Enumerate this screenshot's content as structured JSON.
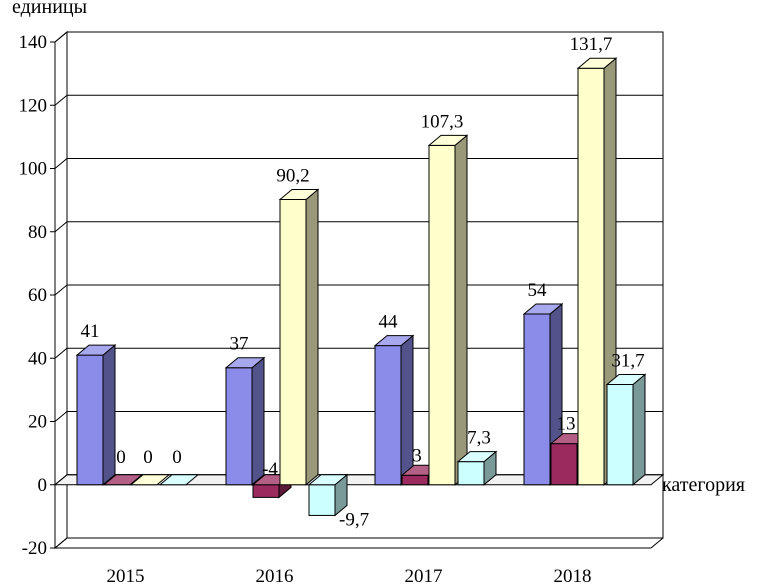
{
  "chart_data": {
    "type": "bar",
    "title": "",
    "ylabel": "единицы",
    "xlabel": "категория",
    "ylim": [
      -20,
      140
    ],
    "yticks": [
      -20,
      0,
      20,
      40,
      60,
      80,
      100,
      120,
      140
    ],
    "categories": [
      "2015",
      "2016",
      "2017",
      "2018"
    ],
    "grid": true,
    "legend": "none",
    "series": [
      {
        "color": "#8b8bea",
        "values": [
          41,
          37,
          44,
          54
        ],
        "labels": [
          "41",
          "37",
          "44",
          "54"
        ]
      },
      {
        "color": "#9b2a5e",
        "values": [
          0,
          -4,
          3,
          13
        ],
        "labels": [
          "0",
          "-4",
          "3",
          "13"
        ]
      },
      {
        "color": "#ffffcc",
        "values": [
          0,
          90.2,
          107.3,
          131.7
        ],
        "labels": [
          "0",
          "90,2",
          "107,3",
          "131,7"
        ]
      },
      {
        "color": "#ccffff",
        "values": [
          0,
          -9.7,
          7.3,
          31.7
        ],
        "labels": [
          "0",
          "-9,7",
          "7,3",
          "31,7"
        ]
      }
    ]
  }
}
